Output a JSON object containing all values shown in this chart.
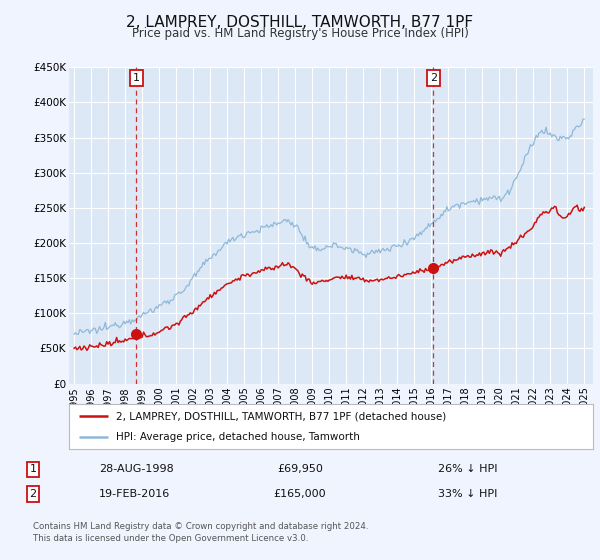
{
  "title": "2, LAMPREY, DOSTHILL, TAMWORTH, B77 1PF",
  "subtitle": "Price paid vs. HM Land Registry's House Price Index (HPI)",
  "ylim": [
    0,
    450000
  ],
  "yticks": [
    0,
    50000,
    100000,
    150000,
    200000,
    250000,
    300000,
    350000,
    400000,
    450000
  ],
  "ytick_labels": [
    "£0",
    "£50K",
    "£100K",
    "£150K",
    "£200K",
    "£250K",
    "£300K",
    "£350K",
    "£400K",
    "£450K"
  ],
  "xlim_start": 1994.7,
  "xlim_end": 2025.5,
  "xtick_years": [
    1995,
    1996,
    1997,
    1998,
    1999,
    2000,
    2001,
    2002,
    2003,
    2004,
    2005,
    2006,
    2007,
    2008,
    2009,
    2010,
    2011,
    2012,
    2013,
    2014,
    2015,
    2016,
    2017,
    2018,
    2019,
    2020,
    2021,
    2022,
    2023,
    2024,
    2025
  ],
  "background_color": "#f0f4ff",
  "plot_bg_color": "#dce8f5",
  "grid_color": "#ffffff",
  "hpi_line_color": "#90b8d8",
  "price_line_color": "#cc1111",
  "vline_color": "#cc1111",
  "marker1_date": 1998.65,
  "marker1_price": 69950,
  "marker1_label": "1",
  "marker2_date": 2016.12,
  "marker2_price": 165000,
  "marker2_label": "2",
  "legend_label1": "2, LAMPREY, DOSTHILL, TAMWORTH, B77 1PF (detached house)",
  "legend_label2": "HPI: Average price, detached house, Tamworth",
  "table_row1_num": "1",
  "table_row1_date": "28-AUG-1998",
  "table_row1_price": "£69,950",
  "table_row1_hpi": "26% ↓ HPI",
  "table_row2_num": "2",
  "table_row2_date": "19-FEB-2016",
  "table_row2_price": "£165,000",
  "table_row2_hpi": "33% ↓ HPI",
  "footnote": "Contains HM Land Registry data © Crown copyright and database right 2024.\nThis data is licensed under the Open Government Licence v3.0."
}
